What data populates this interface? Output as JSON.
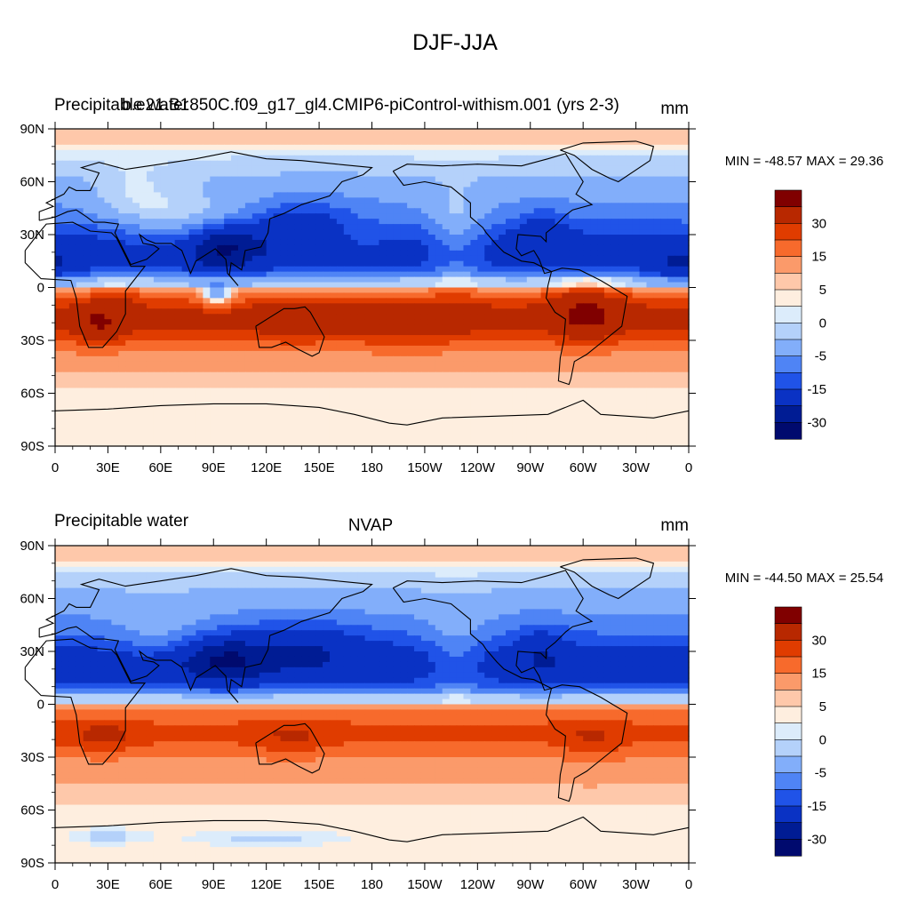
{
  "figure_title": "DJF-JJA",
  "chart_data": [
    {
      "type": "heatmap",
      "left_label": "Precipitable water",
      "center_label": "b.e21.B1850C.f09_g17_gl4.CMIP6-piControl-withism.001 (yrs 2-3)",
      "right_label": "mm",
      "stats": "MIN = -48.57 MAX =  29.36",
      "min": -48.57,
      "max": 29.36,
      "x_ticks": [
        "0",
        "30E",
        "60E",
        "90E",
        "120E",
        "150E",
        "180",
        "150W",
        "120W",
        "90W",
        "60W",
        "30W",
        "0"
      ],
      "y_ticks": [
        "90N",
        "60N",
        "30N",
        "0",
        "30S",
        "60S",
        "90S"
      ],
      "xlim": [
        0,
        360
      ],
      "ylim": [
        -90,
        90
      ],
      "field": {
        "nh_max": 24,
        "nh_lat_peak": 20,
        "sh_max": 22,
        "sh_lat_peak": -17,
        "features": [
          {
            "lon": 95,
            "lat": 23,
            "amp": -22,
            "sx": 14,
            "sy": 9
          },
          {
            "lon": 140,
            "lat": 35,
            "amp": -12,
            "sx": 22,
            "sy": 10
          },
          {
            "lon": 80,
            "lat": 35,
            "amp": 10,
            "sx": 25,
            "sy": 12
          },
          {
            "lon": 45,
            "lat": 50,
            "amp": 6,
            "sx": 18,
            "sy": 12
          },
          {
            "lon": 228,
            "lat": 28,
            "amp": 10,
            "sx": 12,
            "sy": 18
          },
          {
            "lon": 168,
            "lat": 27,
            "amp": 6,
            "sx": 18,
            "sy": 8
          },
          {
            "lon": 277,
            "lat": 32,
            "amp": -8,
            "sx": 10,
            "sy": 10
          },
          {
            "lon": 355,
            "lat": 12,
            "amp": -10,
            "sx": 12,
            "sy": 7
          },
          {
            "lon": 25,
            "lat": -22,
            "amp": 10,
            "sx": 10,
            "sy": 9
          },
          {
            "lon": 35,
            "lat": -5,
            "amp": 6,
            "sx": 8,
            "sy": 5
          },
          {
            "lon": 135,
            "lat": -20,
            "amp": 6,
            "sx": 14,
            "sy": 8
          },
          {
            "lon": 302,
            "lat": -12,
            "amp": 12,
            "sx": 14,
            "sy": 13
          },
          {
            "lon": 92,
            "lat": -5,
            "amp": -20,
            "sx": 7,
            "sy": 4
          },
          {
            "lon": 200,
            "lat": -22,
            "amp": 4,
            "sx": 30,
            "sy": 10
          }
        ]
      }
    },
    {
      "type": "heatmap",
      "left_label": "Precipitable water",
      "center_label": "NVAP",
      "right_label": "mm",
      "stats": "MIN = -44.50 MAX =  25.54",
      "min": -44.5,
      "max": 25.54,
      "x_ticks": [
        "0",
        "30E",
        "60E",
        "90E",
        "120E",
        "150E",
        "180",
        "150W",
        "120W",
        "90W",
        "60W",
        "30W",
        "0"
      ],
      "y_ticks": [
        "90N",
        "60N",
        "30N",
        "0",
        "30S",
        "60S",
        "90S"
      ],
      "xlim": [
        0,
        360
      ],
      "ylim": [
        -90,
        90
      ],
      "field": {
        "nh_max": 24,
        "nh_lat_peak": 22,
        "sh_max": 16,
        "sh_lat_peak": -16,
        "features": [
          {
            "lon": 95,
            "lat": 25,
            "amp": -18,
            "sx": 16,
            "sy": 9
          },
          {
            "lon": 140,
            "lat": 33,
            "amp": -10,
            "sx": 24,
            "sy": 11
          },
          {
            "lon": 60,
            "lat": 38,
            "amp": 6,
            "sx": 20,
            "sy": 10
          },
          {
            "lon": 228,
            "lat": 28,
            "amp": 8,
            "sx": 12,
            "sy": 16
          },
          {
            "lon": 277,
            "lat": 30,
            "amp": -8,
            "sx": 10,
            "sy": 12
          },
          {
            "lon": 28,
            "lat": -18,
            "amp": 6,
            "sx": 14,
            "sy": 7
          },
          {
            "lon": 135,
            "lat": -18,
            "amp": 5,
            "sx": 16,
            "sy": 8
          },
          {
            "lon": 305,
            "lat": -20,
            "amp": 5,
            "sx": 12,
            "sy": 10
          },
          {
            "lon": 120,
            "lat": -76,
            "amp": -4,
            "sx": 28,
            "sy": 3
          },
          {
            "lon": 30,
            "lat": -75,
            "amp": -4,
            "sx": 15,
            "sy": 3
          }
        ]
      }
    }
  ],
  "colorbar": {
    "levels": [
      -40,
      -30,
      -20,
      -15,
      -10,
      -5,
      -2,
      0,
      2,
      5,
      10,
      15,
      20,
      30,
      40
    ],
    "labels": [
      "30",
      "15",
      "5",
      "0",
      "-5",
      "-15",
      "-30"
    ],
    "colors": [
      "#800000",
      "#b82800",
      "#e03c00",
      "#f76a2c",
      "#fb9a6a",
      "#fec8aa",
      "#feeedf",
      "#dcecfb",
      "#b4d1fa",
      "#82aefa",
      "#4f84f5",
      "#2053e8",
      "#0a32c4",
      "#001c94",
      "#000a6e"
    ]
  }
}
